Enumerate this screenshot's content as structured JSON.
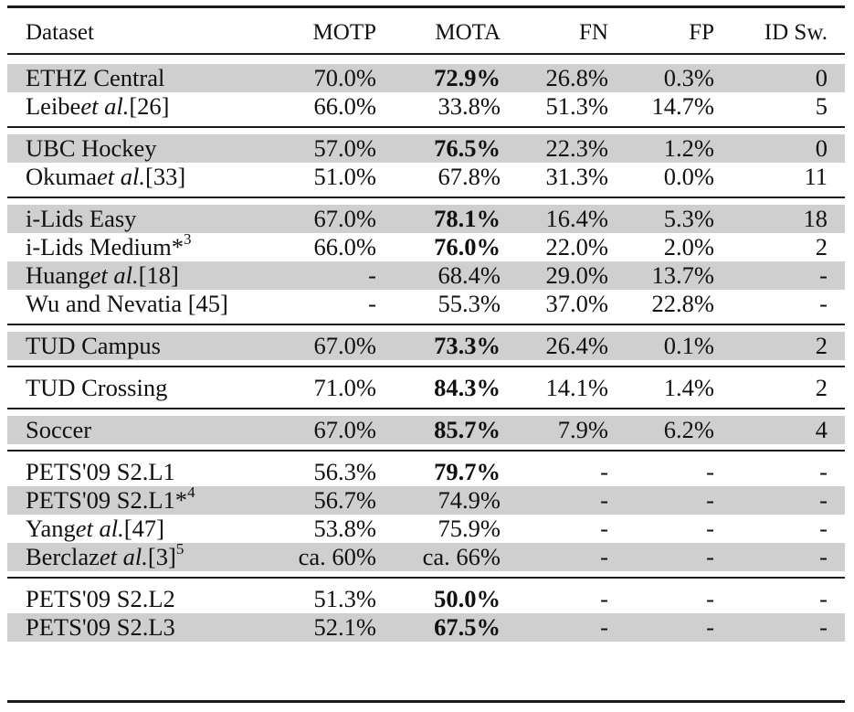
{
  "table": {
    "headers": [
      "Dataset",
      "MOTP",
      "MOTA",
      "FN",
      "FP",
      "ID Sw."
    ],
    "groups": [
      [
        {
          "dataset": [
            "ETHZ Central"
          ],
          "motp": "70.0%",
          "mota": "72.9%",
          "mota_bold": true,
          "fn": "26.8%",
          "fp": "0.3%",
          "idsw": "0",
          "shaded": true
        },
        {
          "dataset": [
            "Leibe ",
            {
              "i": "et al."
            },
            " [26]"
          ],
          "motp": "66.0%",
          "mota": "33.8%",
          "mota_bold": false,
          "fn": "51.3%",
          "fp": "14.7%",
          "idsw": "5",
          "shaded": false
        }
      ],
      [
        {
          "dataset": [
            "UBC Hockey"
          ],
          "motp": "57.0%",
          "mota": "76.5%",
          "mota_bold": true,
          "fn": "22.3%",
          "fp": "1.2%",
          "idsw": "0",
          "shaded": true
        },
        {
          "dataset": [
            "Okuma ",
            {
              "i": "et al."
            },
            " [33]"
          ],
          "motp": "51.0%",
          "mota": "67.8%",
          "mota_bold": false,
          "fn": "31.3%",
          "fp": "0.0%",
          "idsw": "11",
          "shaded": false
        }
      ],
      [
        {
          "dataset": [
            "i-Lids Easy"
          ],
          "motp": "67.0%",
          "mota": "78.1%",
          "mota_bold": true,
          "fn": "16.4%",
          "fp": "5.3%",
          "idsw": "18",
          "shaded": true
        },
        {
          "dataset": [
            "i-Lids Medium*",
            {
              "sup": "3"
            }
          ],
          "motp": "66.0%",
          "mota": "76.0%",
          "mota_bold": true,
          "fn": "22.0%",
          "fp": "2.0%",
          "idsw": "2",
          "shaded": false
        },
        {
          "dataset": [
            "Huang ",
            {
              "i": "et al."
            },
            " [18]"
          ],
          "motp": "-",
          "mota": "68.4%",
          "mota_bold": false,
          "fn": "29.0%",
          "fp": "13.7%",
          "idsw": "-",
          "shaded": true
        },
        {
          "dataset": [
            "Wu and Nevatia [45]"
          ],
          "motp": "-",
          "mota": "55.3%",
          "mota_bold": false,
          "fn": "37.0%",
          "fp": "22.8%",
          "idsw": "-",
          "shaded": false
        }
      ],
      [
        {
          "dataset": [
            "TUD Campus"
          ],
          "motp": "67.0%",
          "mota": "73.3%",
          "mota_bold": true,
          "fn": "26.4%",
          "fp": "0.1%",
          "idsw": "2",
          "shaded": true
        }
      ],
      [
        {
          "dataset": [
            "TUD Crossing"
          ],
          "motp": "71.0%",
          "mota": "84.3%",
          "mota_bold": true,
          "fn": "14.1%",
          "fp": "1.4%",
          "idsw": "2",
          "shaded": false
        }
      ],
      [
        {
          "dataset": [
            "Soccer"
          ],
          "motp": "67.0%",
          "mota": "85.7%",
          "mota_bold": true,
          "fn": "7.9%",
          "fp": "6.2%",
          "idsw": "4",
          "shaded": true
        }
      ],
      [
        {
          "dataset": [
            "PETS'09 S2.L1"
          ],
          "motp": "56.3%",
          "mota": "79.7%",
          "mota_bold": true,
          "fn": "-",
          "fp": "-",
          "idsw": "-",
          "shaded": false
        },
        {
          "dataset": [
            "PETS'09 S2.L1*",
            {
              "sup": "4"
            }
          ],
          "motp": "56.7%",
          "mota": "74.9%",
          "mota_bold": false,
          "fn": "-",
          "fp": "-",
          "idsw": "-",
          "shaded": true
        },
        {
          "dataset": [
            "Yang ",
            {
              "i": "et al."
            },
            " [47]"
          ],
          "motp": "53.8%",
          "mota": "75.9%",
          "mota_bold": false,
          "fn": "-",
          "fp": "-",
          "idsw": "-",
          "shaded": false
        },
        {
          "dataset": [
            "Berclaz ",
            {
              "i": "et al."
            },
            " [3]",
            {
              "sup": "5"
            }
          ],
          "motp": "ca. 60%",
          "mota": "ca. 66%",
          "mota_bold": false,
          "fn": "-",
          "fp": "-",
          "idsw": "-",
          "shaded": true
        }
      ],
      [
        {
          "dataset": [
            "PETS'09 S2.L2"
          ],
          "motp": "51.3%",
          "mota": "50.0%",
          "mota_bold": true,
          "fn": "-",
          "fp": "-",
          "idsw": "-",
          "shaded": false
        },
        {
          "dataset": [
            "PETS'09 S2.L3"
          ],
          "motp": "52.1%",
          "mota": "67.5%",
          "mota_bold": true,
          "fn": "-",
          "fp": "-",
          "idsw": "-",
          "shaded": true
        }
      ]
    ]
  }
}
